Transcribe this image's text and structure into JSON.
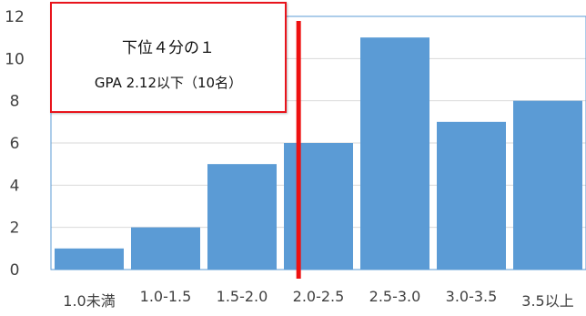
{
  "chart_data": {
    "type": "bar",
    "categories": [
      "1.0未満",
      "1.0-1.5",
      "1.5-2.0",
      "2.0-2.5",
      "2.5-3.0",
      "3.0-3.5",
      "3.5以上"
    ],
    "values": [
      1,
      2,
      5,
      6,
      11,
      7,
      8
    ],
    "ylim": [
      0,
      12
    ],
    "yticks": [
      0,
      2,
      4,
      6,
      8,
      10,
      12
    ],
    "grid": true,
    "bar_color": "#5b9bd5",
    "marker_line": {
      "x": 2.12,
      "color": "#ee1111"
    },
    "annotation": {
      "line1": "下位４分の１",
      "line2": "GPA 2.12以下（10名）"
    }
  }
}
